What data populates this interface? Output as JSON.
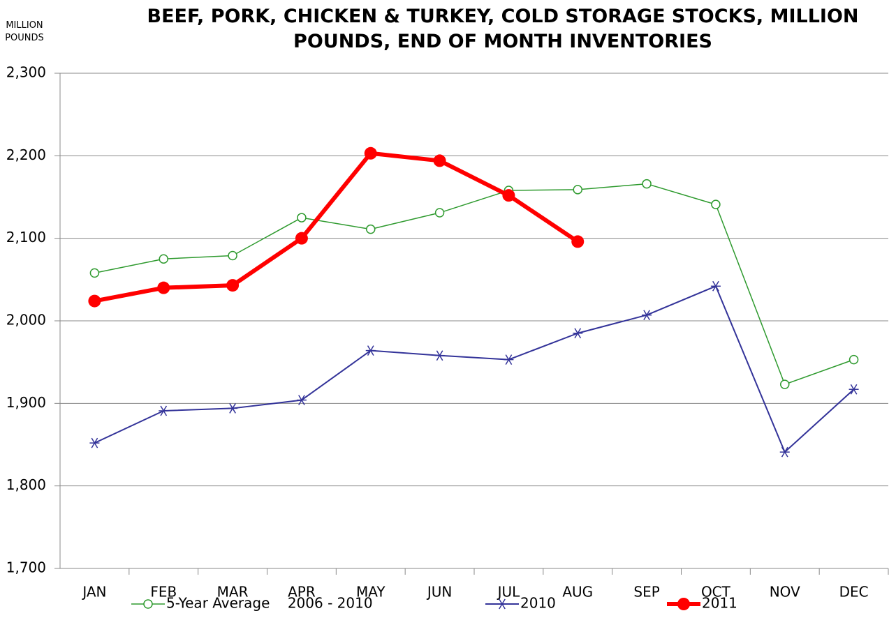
{
  "chart_data": {
    "type": "line",
    "title": "BEEF, PORK, CHICKEN & TURKEY, COLD STORAGE STOCKS, MILLION POUNDS, END OF MONTH INVENTORIES",
    "y_label": "MILLION POUNDS",
    "categories": [
      "JAN",
      "FEB",
      "MAR",
      "APR",
      "MAY",
      "JUN",
      "JUL",
      "AUG",
      "SEP",
      "OCT",
      "NOV",
      "DEC"
    ],
    "ylim": [
      1700,
      2300
    ],
    "yticks": [
      {
        "value": 1700,
        "label": "1,700"
      },
      {
        "value": 1800,
        "label": "1,800"
      },
      {
        "value": 1900,
        "label": "1,900"
      },
      {
        "value": 2000,
        "label": "2,000"
      },
      {
        "value": 2100,
        "label": "2,100"
      },
      {
        "value": 2200,
        "label": "2,200"
      },
      {
        "value": 2300,
        "label": "2,300"
      }
    ],
    "grid": true,
    "legend": "bottom",
    "series": [
      {
        "name": "5-Year Average    2006 - 2010",
        "color": "#2e9a2e",
        "marker": "circle",
        "values": [
          2058,
          2075,
          2079,
          2125,
          2111,
          2131,
          2158,
          2159,
          2166,
          2141,
          1923,
          1953
        ]
      },
      {
        "name": "2010",
        "color": "#333399",
        "marker": "asterisk",
        "values": [
          1852,
          1891,
          1894,
          1904,
          1964,
          1958,
          1953,
          1985,
          2007,
          2042,
          1841,
          1917
        ]
      },
      {
        "name": "2011",
        "color": "#ff0000",
        "marker": "dot",
        "values": [
          2024,
          2040,
          2043,
          2100,
          2203,
          2194,
          2152,
          2096,
          null,
          null,
          null,
          null
        ]
      }
    ]
  }
}
